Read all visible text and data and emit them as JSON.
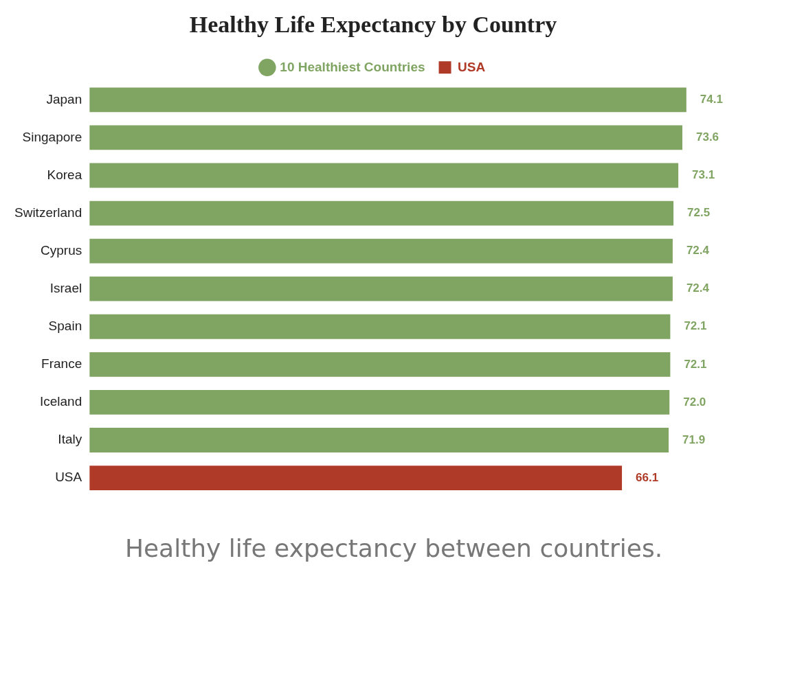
{
  "chart_data": {
    "type": "bar",
    "orientation": "horizontal",
    "title": "Healthy Life Expectancy by Country",
    "categories": [
      "Japan",
      "Singapore",
      "Korea",
      "Switzerland",
      "Cyprus",
      "Israel",
      "Spain",
      "France",
      "Iceland",
      "Italy",
      "USA"
    ],
    "series": [
      {
        "name": "10 Healthiest Countries",
        "color": "#80a462",
        "values": [
          74.1,
          73.6,
          73.1,
          72.5,
          72.4,
          72.4,
          72.1,
          72.1,
          72.0,
          71.9,
          null
        ],
        "value_labels": [
          "74.1",
          "73.6",
          "73.1",
          "72.5",
          "72.4",
          "72.4",
          "72.1",
          "72.1",
          "72.0",
          "71.9",
          null
        ]
      },
      {
        "name": "USA",
        "color": "#b03a28",
        "values": [
          null,
          null,
          null,
          null,
          null,
          null,
          null,
          null,
          null,
          null,
          66.1
        ],
        "value_labels": [
          null,
          null,
          null,
          null,
          null,
          null,
          null,
          null,
          null,
          null,
          "66.1"
        ]
      }
    ],
    "tick_labels": "y",
    "legend": "top",
    "annotations": [
      "Healthy life expectancy between countries."
    ]
  }
}
